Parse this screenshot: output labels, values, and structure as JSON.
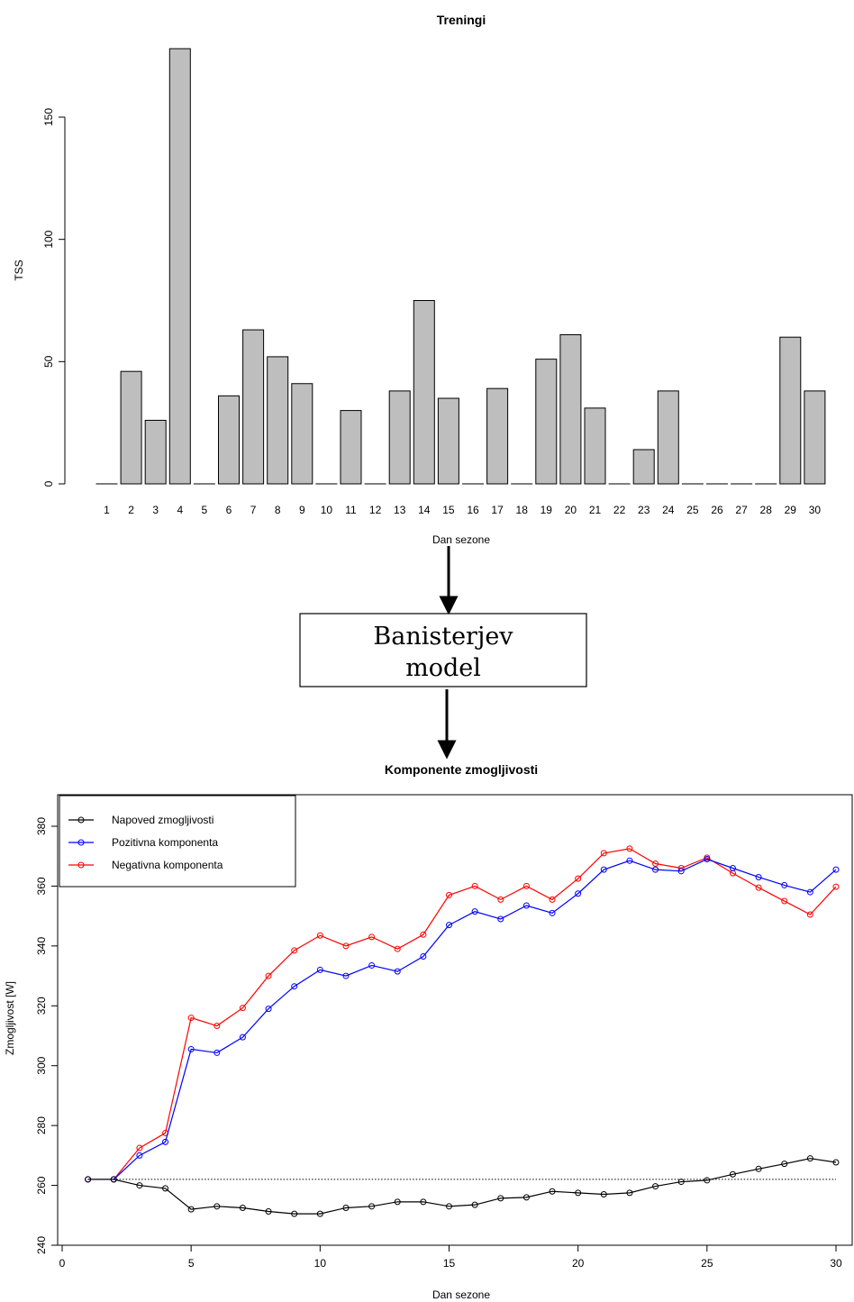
{
  "model_box": {
    "line1": "Banisterjev",
    "line2": "model"
  },
  "chart_data": [
    {
      "type": "bar",
      "title": "Treningi",
      "xlabel": "Dan sezone",
      "ylabel": "TSS",
      "ylim": [
        0,
        180
      ],
      "yticks": [
        0,
        50,
        100,
        150
      ],
      "categories": [
        "1",
        "2",
        "3",
        "4",
        "5",
        "6",
        "7",
        "8",
        "9",
        "10",
        "11",
        "12",
        "13",
        "14",
        "15",
        "16",
        "17",
        "18",
        "19",
        "20",
        "21",
        "22",
        "23",
        "24",
        "25",
        "26",
        "27",
        "28",
        "29",
        "30"
      ],
      "values": [
        0,
        46,
        26,
        178,
        0,
        36,
        63,
        52,
        41,
        0,
        30,
        0,
        38,
        75,
        35,
        0,
        39,
        0,
        51,
        61,
        31,
        0,
        14,
        38,
        0,
        0,
        0,
        0,
        60,
        38
      ],
      "bar_color": "#bebebe"
    },
    {
      "type": "line",
      "title": "Komponente zmogljivosti",
      "xlabel": "Dan sezone",
      "ylabel": "Zmogljivost [W]",
      "xlim": [
        0,
        30
      ],
      "ylim": [
        240,
        385
      ],
      "xticks": [
        0,
        5,
        10,
        15,
        20,
        25,
        30
      ],
      "yticks": [
        240,
        260,
        280,
        300,
        320,
        340,
        360,
        380
      ],
      "x": [
        1,
        2,
        3,
        4,
        5,
        6,
        7,
        8,
        9,
        10,
        11,
        12,
        13,
        14,
        15,
        16,
        17,
        18,
        19,
        20,
        21,
        22,
        23,
        24,
        25,
        26,
        27,
        28,
        29,
        30
      ],
      "reference_line": 262,
      "legend_position": "top-left",
      "series": [
        {
          "name": "Napoved zmogljivosti",
          "color": "#000000",
          "values": [
            262,
            262,
            260,
            259,
            252,
            253,
            252.5,
            251.3,
            250.5,
            250.5,
            252.5,
            253,
            254.5,
            254.5,
            253,
            253.5,
            255.7,
            256,
            258,
            257.5,
            257,
            257.5,
            259.7,
            261.2,
            261.7,
            263.7,
            265.5,
            267.2,
            269,
            267.7
          ]
        },
        {
          "name": "Pozitivna komponenta",
          "color": "#0000ff",
          "values": [
            262,
            262,
            270,
            274.5,
            305.5,
            304.3,
            309.5,
            319,
            326.5,
            332,
            330,
            333.5,
            331.5,
            336.5,
            347,
            351.5,
            349,
            353.5,
            351,
            357.5,
            365.5,
            368.5,
            365.5,
            365,
            369,
            366,
            363,
            360.3,
            358,
            365.5
          ]
        },
        {
          "name": "Negativna komponenta",
          "color": "#ff0000",
          "values": [
            262,
            262,
            272.5,
            277.5,
            316,
            313.3,
            319.3,
            330,
            338.5,
            343.5,
            340,
            343,
            339,
            343.8,
            357,
            360,
            355.5,
            360,
            355.5,
            362.5,
            371,
            372.5,
            367.5,
            366,
            369.5,
            364.3,
            359.5,
            355,
            350.5,
            359.8
          ]
        }
      ]
    }
  ]
}
